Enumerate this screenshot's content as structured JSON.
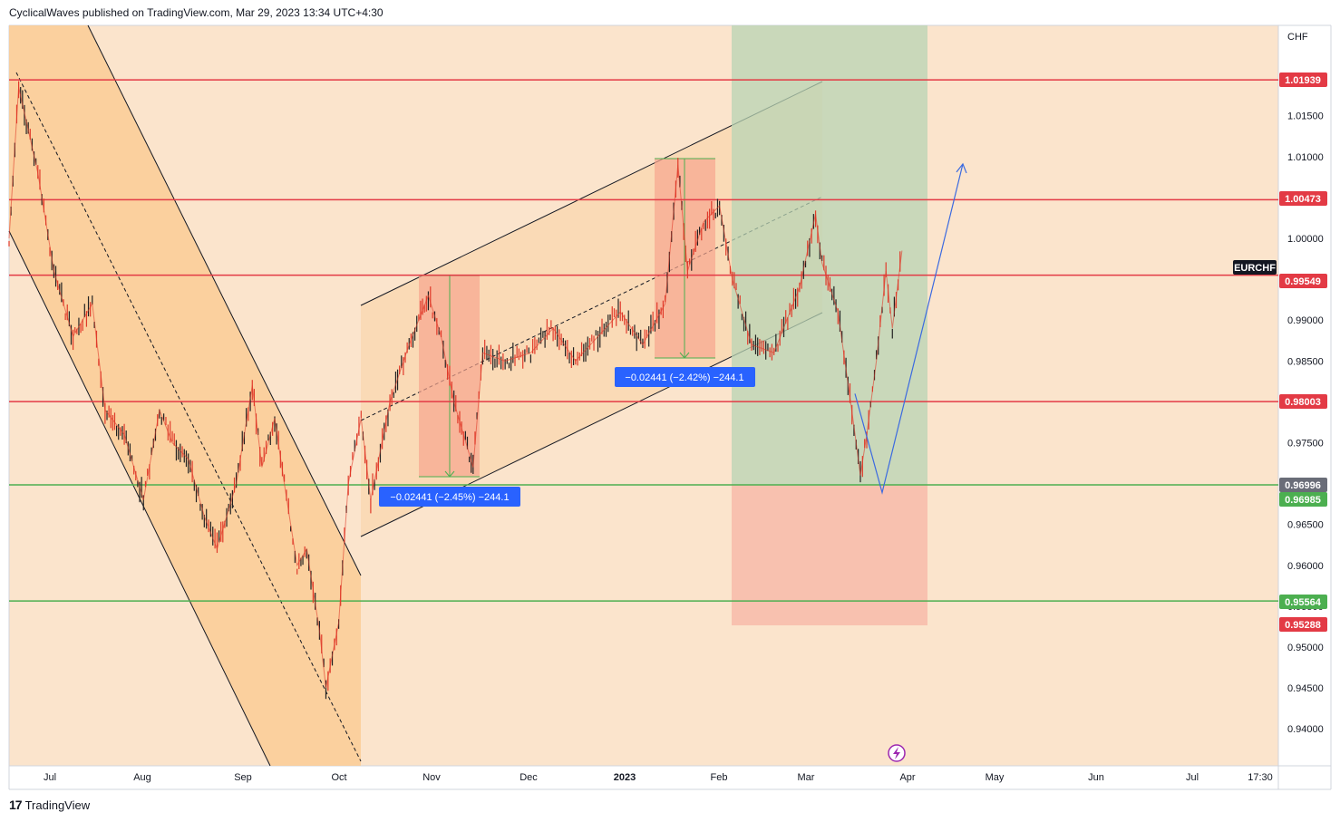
{
  "header": {
    "text": "CyclicalWaves published on TradingView.com, Mar 29, 2023 13:34 UTC+4:30"
  },
  "footer": {
    "logo": "17",
    "brand": "TradingView"
  },
  "colors": {
    "background": "#fbe4cc",
    "channel_fill": "#fbc98f",
    "channel_fill_up": "#f9d5ac",
    "resistance": "#e33a45",
    "support": "#4caf50",
    "up_candle": "#222222",
    "down_candle": "#e03a2a",
    "measure_fill": "#f6a58f",
    "target_green": "#b8d4b4",
    "stop_red": "#f8b8a8",
    "projection": "#3b6ae0",
    "label_blue": "#2962ff",
    "label_red": "#e33a45",
    "label_green": "#4caf50",
    "label_gray": "#6a6d78",
    "label_black": "#131722"
  },
  "chart_data": {
    "type": "line",
    "symbol": "EURCHF",
    "currency": "CHF",
    "x_tick_labels": [
      "Jul",
      "Aug",
      "Sep",
      "Oct",
      "Nov",
      "Dec",
      "2023",
      "Feb",
      "Mar",
      "Apr",
      "May",
      "Jun",
      "Jul",
      "17:30"
    ],
    "y_ticks": [
      1.015,
      1.01,
      1.005,
      1.0,
      0.995,
      0.99,
      0.985,
      0.98,
      0.975,
      0.97,
      0.965,
      0.96,
      0.955,
      0.95,
      0.945,
      0.94
    ],
    "y_tick_labels": [
      "1.01500",
      "1.01000",
      "1.00500",
      "1.00000",
      "0.99500",
      "0.99000",
      "0.98500",
      "0.98000",
      "0.97500",
      "0.97000",
      "0.96500",
      "0.96000",
      "0.95500",
      "0.95000",
      "0.94500",
      "0.94000"
    ],
    "ylim": [
      0.9355,
      1.0205
    ],
    "grid": false,
    "price_series": {
      "name": "EURCHF",
      "x": [
        "2022-06-22",
        "2022-06-25",
        "2022-07-01",
        "2022-07-06",
        "2022-07-12",
        "2022-07-18",
        "2022-07-22",
        "2022-07-28",
        "2022-08-03",
        "2022-08-08",
        "2022-08-12",
        "2022-08-17",
        "2022-08-22",
        "2022-08-26",
        "2022-09-01",
        "2022-09-06",
        "2022-09-09",
        "2022-09-13",
        "2022-09-16",
        "2022-09-20",
        "2022-09-23",
        "2022-09-27",
        "2022-09-29",
        "2022-10-03",
        "2022-10-06",
        "2022-10-10",
        "2022-10-13",
        "2022-10-19",
        "2022-10-25",
        "2022-10-31",
        "2022-11-04",
        "2022-11-08",
        "2022-11-14",
        "2022-11-17",
        "2022-11-24",
        "2022-12-02",
        "2022-12-09",
        "2022-12-16",
        "2022-12-23",
        "2022-12-30",
        "2023-01-06",
        "2023-01-13",
        "2023-01-17",
        "2023-01-20",
        "2023-01-25",
        "2023-01-30",
        "2023-02-03",
        "2023-02-09",
        "2023-02-16",
        "2023-02-24",
        "2023-03-01",
        "2023-03-03",
        "2023-03-08",
        "2023-03-13",
        "2023-03-15",
        "2023-03-17",
        "2023-03-20",
        "2023-03-23",
        "2023-03-25",
        "2023-03-28"
      ],
      "close": [
        1.0,
        1.0185,
        1.008,
        0.996,
        0.988,
        0.992,
        0.979,
        0.976,
        0.968,
        0.979,
        0.975,
        0.973,
        0.966,
        0.962,
        0.97,
        0.982,
        0.972,
        0.978,
        0.97,
        0.96,
        0.962,
        0.952,
        0.945,
        0.953,
        0.97,
        0.978,
        0.968,
        0.98,
        0.987,
        0.993,
        0.988,
        0.98,
        0.972,
        0.986,
        0.985,
        0.986,
        0.989,
        0.985,
        0.988,
        0.991,
        0.987,
        0.992,
        1.009,
        0.996,
        1.002,
        1.004,
        0.995,
        0.987,
        0.986,
        0.994,
        1.003,
        0.997,
        0.991,
        0.977,
        0.971,
        0.976,
        0.985,
        0.996,
        0.989,
        0.9985
      ]
    },
    "annotations": [
      {
        "type": "measure",
        "text": "−0.02441 (−2.45%) −244.1",
        "from": 0.9955,
        "to": 0.9711
      },
      {
        "type": "measure",
        "text": "−0.02441 (−2.42%) −244.1",
        "from": 1.0098,
        "to": 0.9854
      }
    ],
    "horizontal_levels": [
      {
        "label": "1.01939",
        "value": 1.01939,
        "kind": "resistance"
      },
      {
        "label": "1.00473",
        "value": 1.00473,
        "kind": "resistance"
      },
      {
        "label": "0.99549",
        "value": 0.99549,
        "kind": "resistance"
      },
      {
        "label": "0.98003",
        "value": 0.98003,
        "kind": "resistance"
      },
      {
        "label": "0.96996",
        "value": 0.96996,
        "kind": "gray"
      },
      {
        "label": "0.96985",
        "value": 0.96985,
        "kind": "support"
      },
      {
        "label": "0.95564",
        "value": 0.95564,
        "kind": "support"
      },
      {
        "label": "0.95288",
        "value": 0.95288,
        "kind": "red-tag"
      }
    ],
    "symbol_tag": "EURCHF",
    "projection": {
      "points": [
        0.981,
        0.9689,
        1.0091
      ]
    }
  }
}
